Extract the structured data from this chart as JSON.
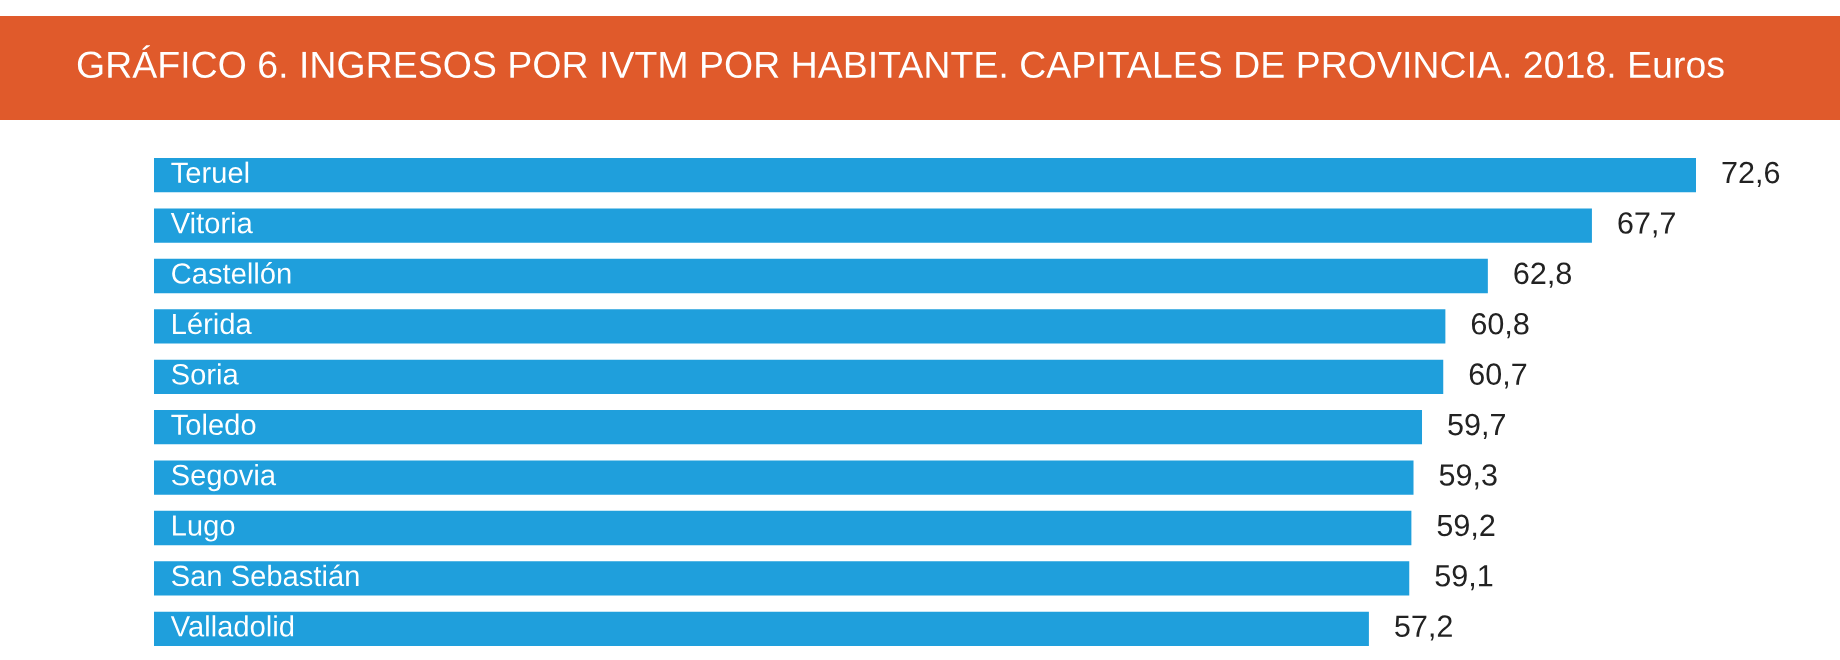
{
  "chart_data": {
    "type": "bar",
    "orientation": "horizontal",
    "title": "GRÁFICO 6. INGRESOS POR IVTM POR HABITANTE. CAPITALES DE PROVINCIA. 2018. Euros",
    "categories": [
      "Teruel",
      "Vitoria",
      "Castellón",
      "Lérida",
      "Soria",
      "Toledo",
      "Segovia",
      "Lugo",
      "San Sebastián",
      "Valladolid"
    ],
    "values": [
      72.6,
      67.7,
      62.8,
      60.8,
      60.7,
      59.7,
      59.3,
      59.2,
      59.1,
      57.2
    ],
    "value_labels": [
      "72,6",
      "67,7",
      "62,8",
      "60,8",
      "60,7",
      "59,7",
      "59,3",
      "59,2",
      "59,1",
      "57,2"
    ],
    "color": "#1f9fdc"
  }
}
